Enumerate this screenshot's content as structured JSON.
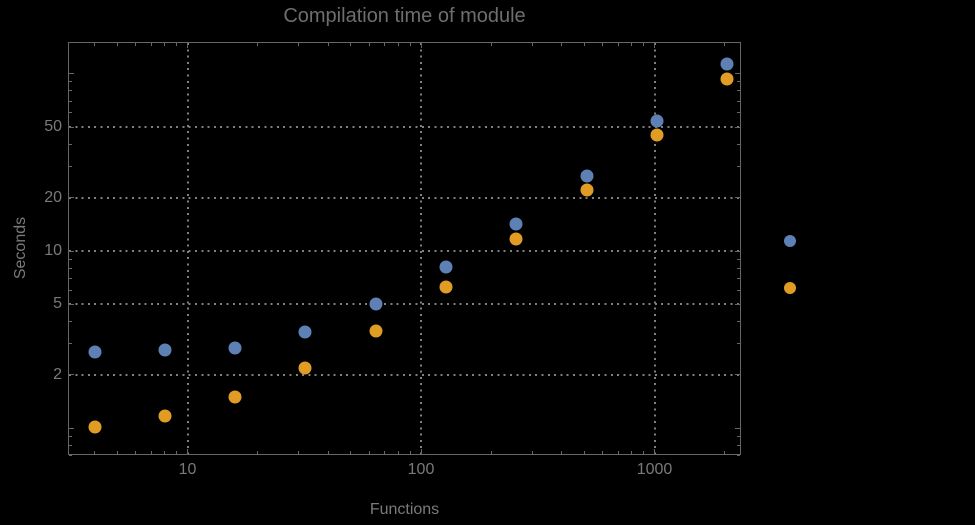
{
  "style": {
    "background": "#000000",
    "frame_color": "#666666",
    "grid_color": "#808080",
    "label_color": "#7a7a7a",
    "title_color": "#6e6e6e"
  },
  "chart_data": {
    "type": "scatter",
    "title": "Compilation time of module",
    "xlabel": "Functions",
    "ylabel": "Seconds",
    "x_scale": "log",
    "y_scale": "log",
    "xlim": [
      3.05,
      2335
    ],
    "ylim": [
      0.69,
      151
    ],
    "grid": {
      "style": "dotted",
      "x_values": [
        10,
        100,
        1000
      ],
      "y_values": [
        2,
        5,
        10,
        20,
        50
      ]
    },
    "x_tick_labels": [
      {
        "value": 10,
        "label": "10"
      },
      {
        "value": 100,
        "label": "100"
      },
      {
        "value": 1000,
        "label": "1000"
      }
    ],
    "y_tick_labels": [
      {
        "value": 50,
        "label": "50"
      },
      {
        "value": 20,
        "label": "20"
      },
      {
        "value": 10,
        "label": "10"
      },
      {
        "value": 5,
        "label": "5"
      },
      {
        "value": 2,
        "label": "2"
      }
    ],
    "series": [
      {
        "name": "series-1-blue",
        "color": "#5e81b5",
        "marker": "circle",
        "x": [
          4,
          8,
          16,
          32,
          64,
          128,
          256,
          512,
          1024,
          2048
        ],
        "y": [
          2.7,
          2.75,
          2.85,
          3.5,
          5.0,
          8.1,
          14.2,
          26.5,
          54,
          113
        ]
      },
      {
        "name": "series-2-orange",
        "color": "#e19c24",
        "marker": "circle",
        "x": [
          4,
          8,
          16,
          32,
          64,
          128,
          256,
          512,
          1024,
          2048
        ],
        "y": [
          1.02,
          1.18,
          1.5,
          2.2,
          3.55,
          6.3,
          11.7,
          22,
          45,
          93
        ]
      }
    ],
    "legend": {
      "position": "right-outside",
      "labels_visible": false,
      "markers": [
        {
          "series": "series-1-blue",
          "color": "#5e81b5"
        },
        {
          "series": "series-2-orange",
          "color": "#e19c24"
        }
      ]
    }
  }
}
